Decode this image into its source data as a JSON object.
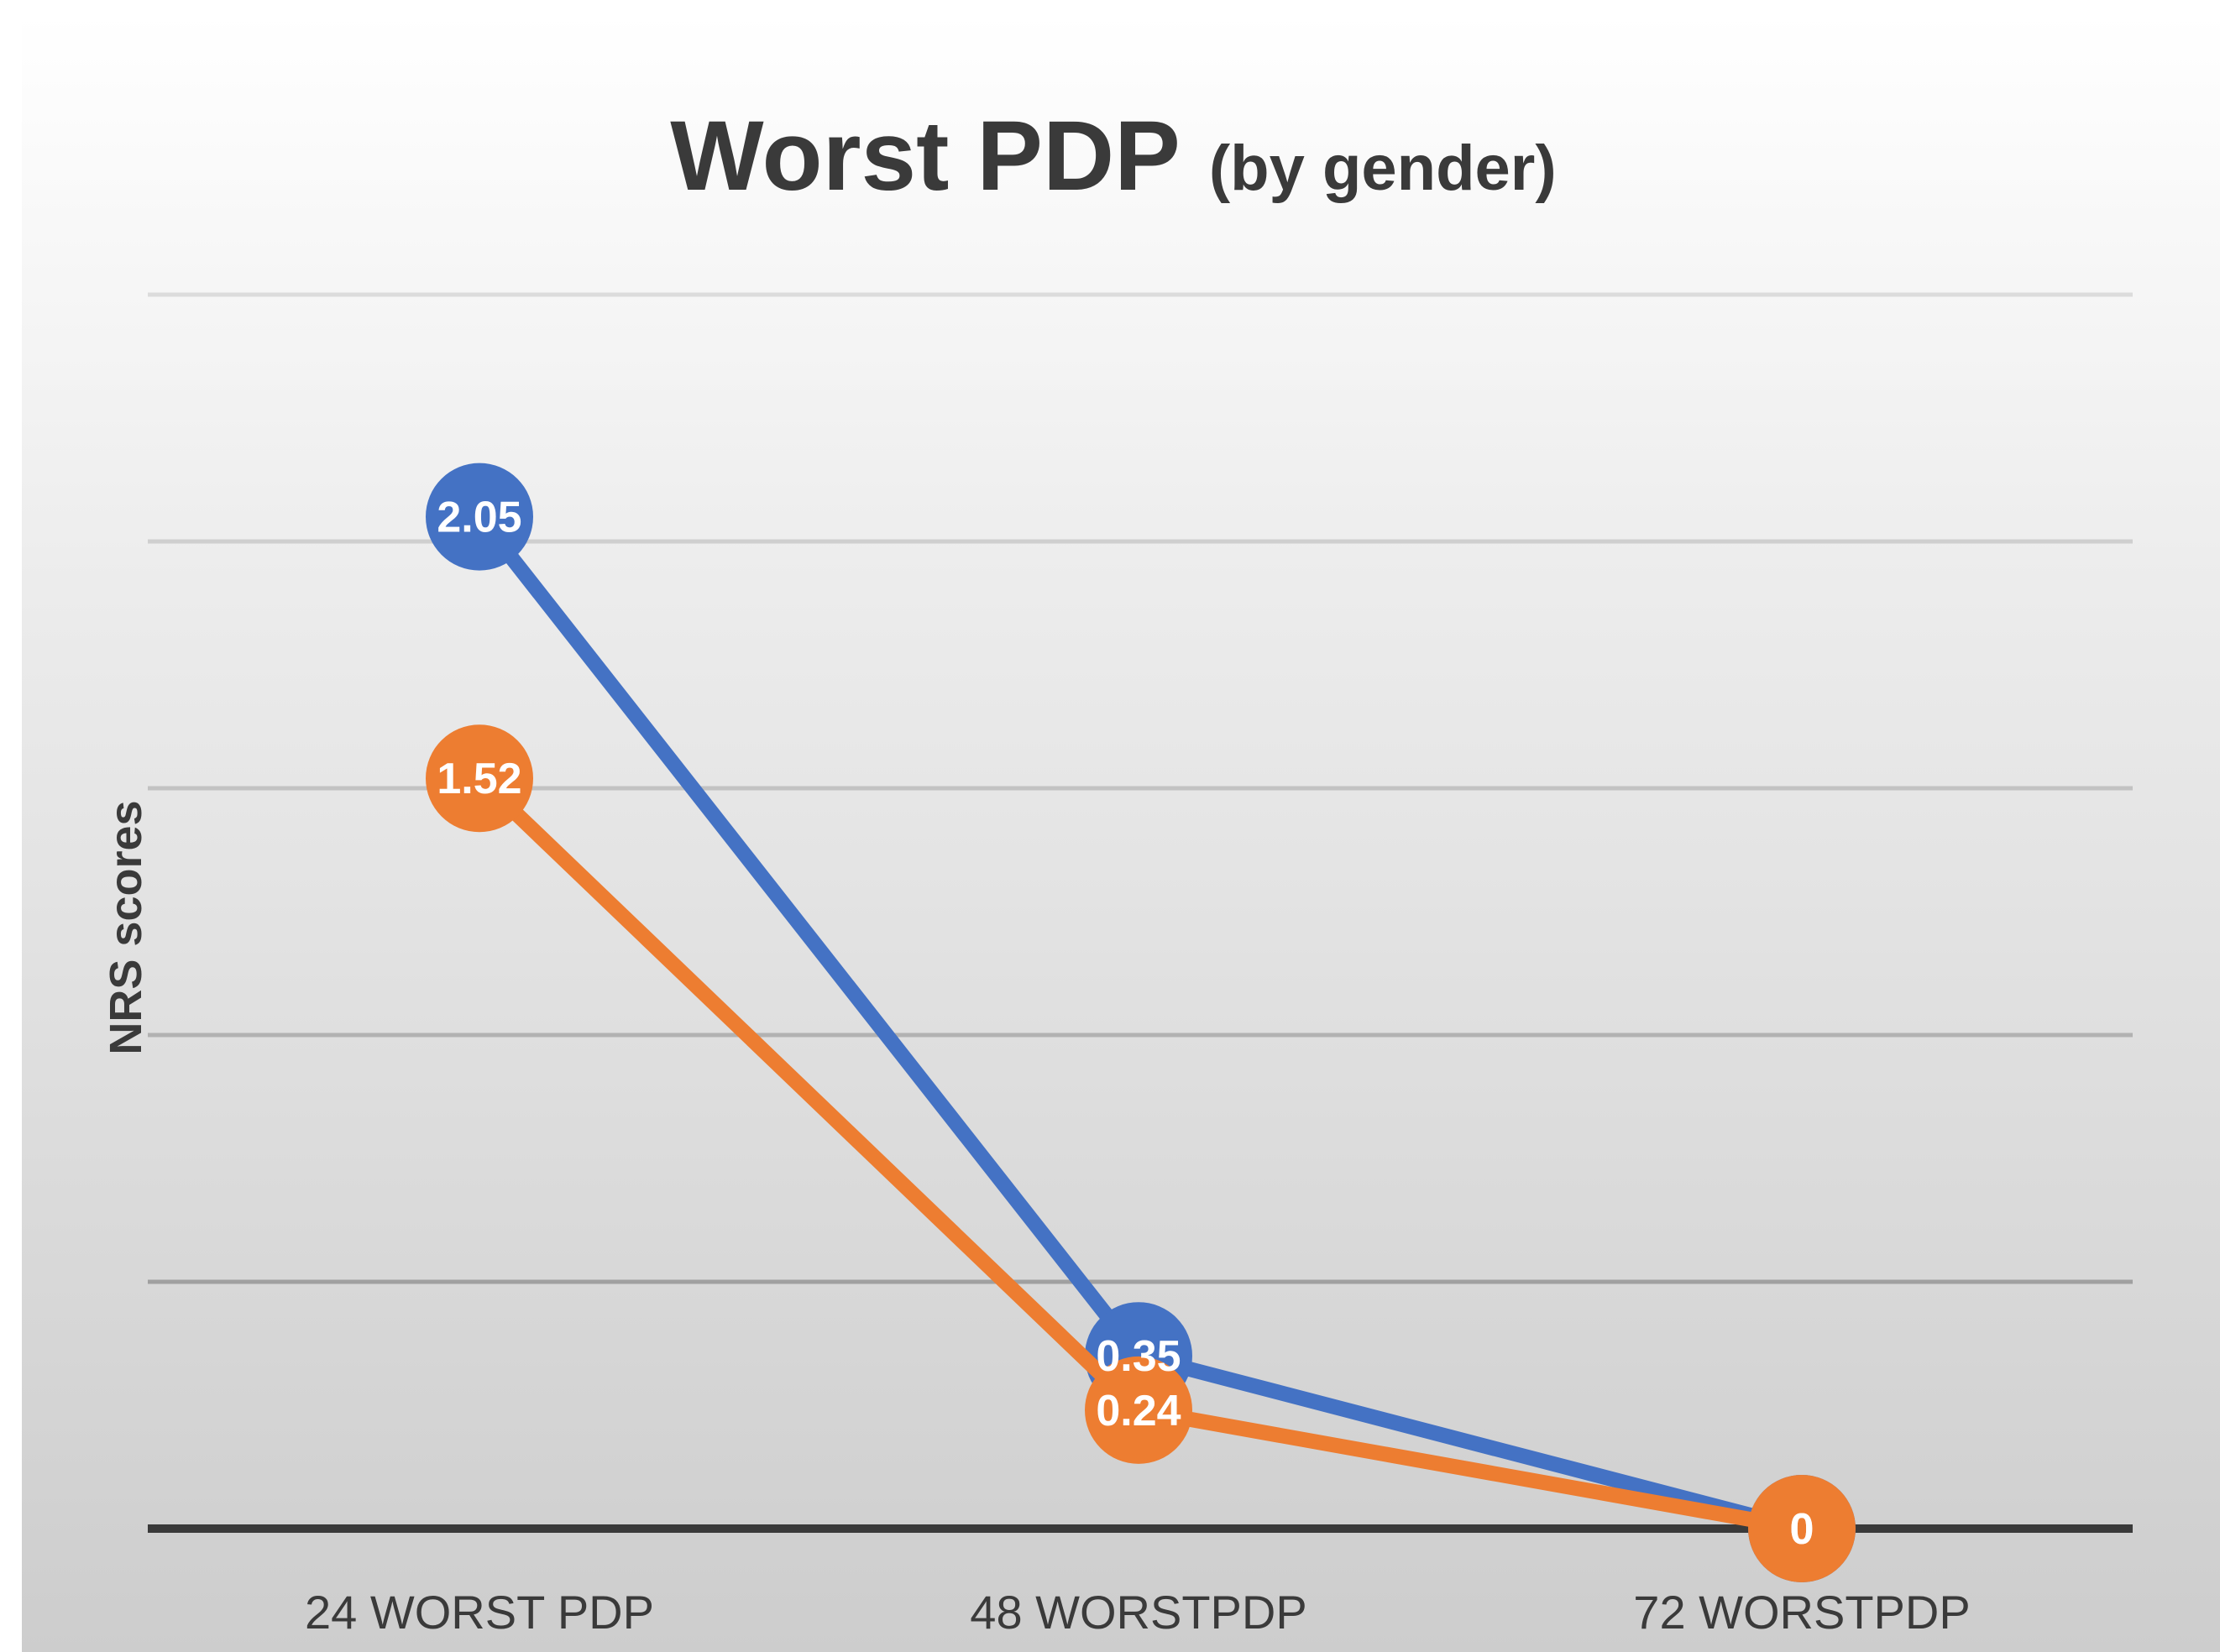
{
  "chart_data": {
    "type": "line",
    "title": "Worst PDP",
    "subtitle": "(by gender)",
    "xlabel": "",
    "ylabel": "NRS scores",
    "categories": [
      "24 WORST PDP",
      "48 WORSTPDP",
      "72 WORSTPDP"
    ],
    "ylim": [
      0,
      2.5
    ],
    "grid": true,
    "series": [
      {
        "color": "#4472C4",
        "values": [
          2.05,
          0.35,
          0
        ],
        "labels": [
          "2.05",
          "0.35",
          "0"
        ]
      },
      {
        "color": "#ED7D31",
        "values": [
          1.52,
          0.24,
          0
        ],
        "labels": [
          "1.52",
          "0.24",
          "0"
        ]
      }
    ]
  }
}
